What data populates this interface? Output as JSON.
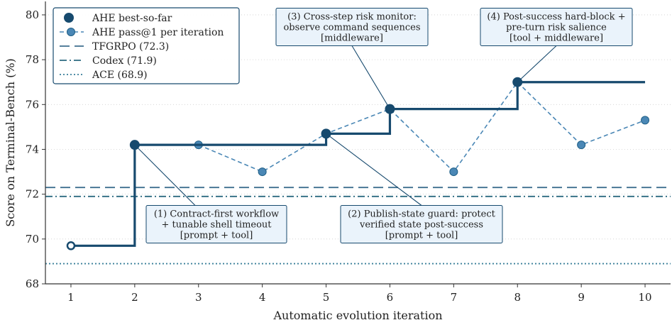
{
  "chart_data": {
    "type": "line",
    "xlabel": "Automatic evolution iteration",
    "ylabel": "Score on Terminal-Bench (%)",
    "xlim": [
      0.6,
      10.4
    ],
    "ylim": [
      68,
      80.6
    ],
    "x_ticks": [
      1,
      2,
      3,
      4,
      5,
      6,
      7,
      8,
      9,
      10
    ],
    "y_ticks": [
      68,
      70,
      72,
      74,
      76,
      78,
      80
    ],
    "grid": "horizontal dotted",
    "legend_position": "top-left",
    "series": [
      {
        "name": "AHE best-so-far",
        "style": "step",
        "color": "#174a6e",
        "x": [
          1,
          2,
          3,
          4,
          5,
          6,
          7,
          8,
          9,
          10
        ],
        "y": [
          69.7,
          74.2,
          74.2,
          74.2,
          74.7,
          75.8,
          75.8,
          77.0,
          77.0,
          77.0
        ],
        "markers_at": [
          2,
          5,
          6,
          8
        ],
        "start_marker": "hollow"
      },
      {
        "name": "AHE pass@1 per iteration",
        "style": "dashed-markers",
        "color": "#4a87b5",
        "x": [
          2,
          3,
          4,
          5,
          6,
          7,
          8,
          9,
          10
        ],
        "y": [
          74.2,
          74.2,
          73.0,
          74.7,
          75.8,
          73.0,
          77.0,
          74.2,
          75.3
        ]
      }
    ],
    "reference_lines": [
      {
        "name": "TFGRPO (72.3)",
        "value": 72.3,
        "style": "dashed",
        "color": "#3f6f8f"
      },
      {
        "name": "Codex (71.9)",
        "value": 71.9,
        "style": "dashdot",
        "color": "#2c6a80"
      },
      {
        "name": "ACE (68.9)",
        "value": 68.9,
        "style": "dotted",
        "color": "#3a7f9a"
      }
    ],
    "annotations": [
      {
        "x": 2,
        "y": 74.2,
        "lines": [
          "(1) Contract-first workflow",
          "+ tunable shell timeout",
          "[prompt + tool]"
        ]
      },
      {
        "x": 5,
        "y": 74.7,
        "lines": [
          "(2) Publish-state guard: protect",
          "verified state post-success",
          "[prompt + tool]"
        ]
      },
      {
        "x": 6,
        "y": 75.8,
        "lines": [
          "(3) Cross-step risk monitor:",
          "observe command sequences",
          "[middleware]"
        ]
      },
      {
        "x": 8,
        "y": 77.0,
        "lines": [
          "(4) Post-success hard-block +",
          "pre-turn risk salience",
          "[tool + middleware]"
        ]
      }
    ]
  }
}
